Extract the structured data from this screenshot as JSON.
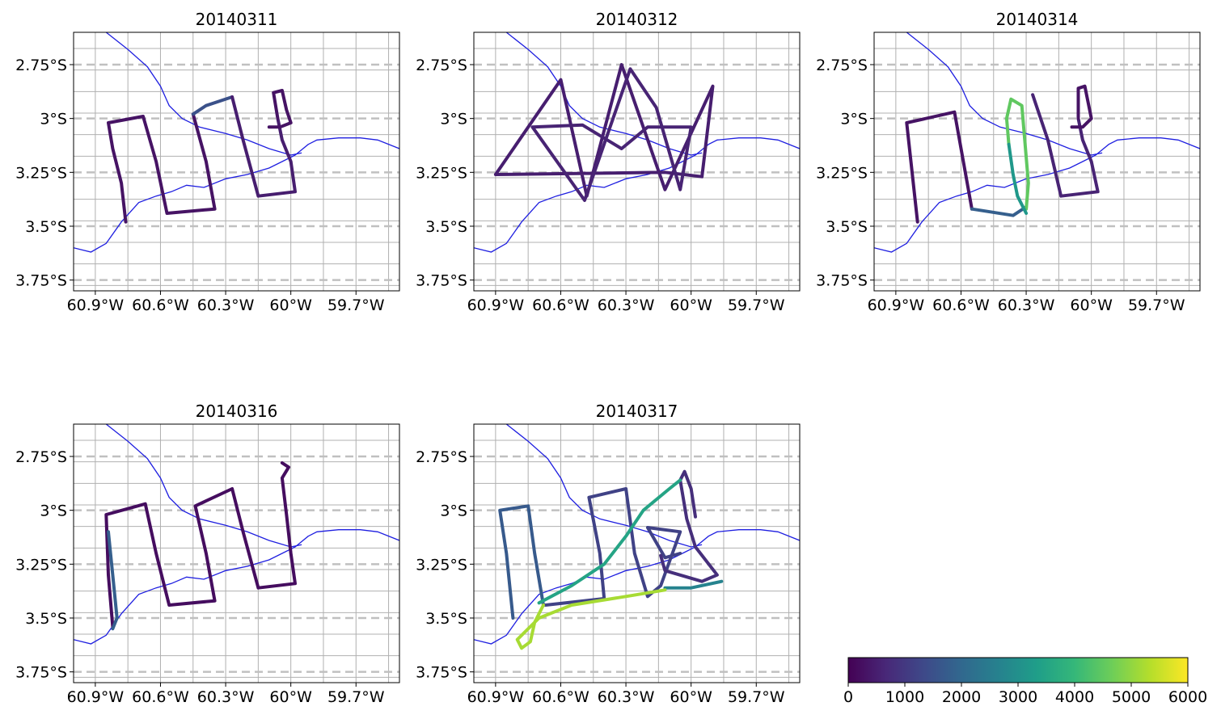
{
  "chart_data": {
    "type": "line",
    "x_ticks": [
      "60.9°W",
      "60.6°W",
      "60.3°W",
      "60°W",
      "59.7°W"
    ],
    "y_ticks": [
      "2.75°S",
      "3°S",
      "3.25°S",
      "3.5°S",
      "3.75°S"
    ],
    "xlim": [
      -61.0,
      -59.5
    ],
    "ylim": [
      -3.8,
      -2.6
    ],
    "grid": true,
    "colorbar": {
      "colormap": "viridis",
      "ticks": [
        "0",
        "1000",
        "2000",
        "3000",
        "4000",
        "5000",
        "6000"
      ],
      "range": [
        0,
        6000
      ]
    },
    "river": [
      [
        -61.0,
        -3.6
      ],
      [
        -60.92,
        -3.62
      ],
      [
        -60.85,
        -3.58
      ],
      [
        -60.78,
        -3.48
      ],
      [
        -60.7,
        -3.39
      ],
      [
        -60.62,
        -3.36
      ],
      [
        -60.55,
        -3.34
      ],
      [
        -60.48,
        -3.31
      ],
      [
        -60.4,
        -3.32
      ],
      [
        -60.3,
        -3.28
      ],
      [
        -60.2,
        -3.26
      ],
      [
        -60.1,
        -3.23
      ],
      [
        -60.04,
        -3.2
      ],
      [
        -59.98,
        -3.17
      ],
      [
        -59.92,
        -3.12
      ],
      [
        -59.88,
        -3.1
      ],
      [
        -59.78,
        -3.09
      ],
      [
        -59.68,
        -3.09
      ],
      [
        -59.6,
        -3.1
      ],
      [
        -59.5,
        -3.14
      ]
    ],
    "river2": [
      [
        -60.85,
        -2.6
      ],
      [
        -60.75,
        -2.68
      ],
      [
        -60.66,
        -2.76
      ],
      [
        -60.6,
        -2.85
      ],
      [
        -60.56,
        -2.94
      ],
      [
        -60.5,
        -3.0
      ],
      [
        -60.42,
        -3.04
      ],
      [
        -60.3,
        -3.07
      ],
      [
        -60.2,
        -3.1
      ],
      [
        -60.1,
        -3.14
      ],
      [
        -60.0,
        -3.17
      ],
      [
        -59.95,
        -3.16
      ]
    ],
    "panels": [
      {
        "title": "20140311",
        "segments": [
          {
            "alt": 300,
            "points": [
              [
                -60.76,
                -3.48
              ],
              [
                -60.78,
                -3.3
              ],
              [
                -60.82,
                -3.14
              ],
              [
                -60.84,
                -3.02
              ],
              [
                -60.68,
                -2.99
              ],
              [
                -60.62,
                -3.2
              ],
              [
                -60.57,
                -3.44
              ],
              [
                -60.35,
                -3.42
              ],
              [
                -60.39,
                -3.2
              ],
              [
                -60.45,
                -2.98
              ]
            ]
          },
          {
            "alt": 1500,
            "points": [
              [
                -60.45,
                -2.98
              ],
              [
                -60.39,
                -2.94
              ],
              [
                -60.27,
                -2.9
              ]
            ]
          },
          {
            "alt": 500,
            "points": [
              [
                -60.27,
                -2.9
              ],
              [
                -60.22,
                -3.1
              ],
              [
                -60.15,
                -3.36
              ],
              [
                -59.98,
                -3.34
              ],
              [
                -60.0,
                -3.2
              ],
              [
                -60.04,
                -3.1
              ],
              [
                -60.06,
                -3.0
              ]
            ]
          },
          {
            "alt": 300,
            "points": [
              [
                -60.06,
                -3.0
              ],
              [
                -60.08,
                -2.88
              ],
              [
                -60.04,
                -2.87
              ],
              [
                -60.02,
                -2.96
              ],
              [
                -60.0,
                -3.02
              ],
              [
                -60.05,
                -3.04
              ],
              [
                -60.1,
                -3.04
              ]
            ]
          }
        ]
      },
      {
        "title": "20140312",
        "segments": [
          {
            "alt": 500,
            "points": [
              [
                -60.9,
                -3.26
              ],
              [
                -60.6,
                -2.82
              ],
              [
                -60.48,
                -3.36
              ],
              [
                -60.32,
                -2.75
              ],
              [
                -60.12,
                -3.33
              ],
              [
                -59.9,
                -2.85
              ],
              [
                -59.95,
                -3.27
              ],
              [
                -60.12,
                -3.25
              ],
              [
                -60.9,
                -3.26
              ]
            ]
          },
          {
            "alt": 600,
            "points": [
              [
                -60.73,
                -3.04
              ],
              [
                -60.49,
                -3.38
              ],
              [
                -60.28,
                -2.77
              ],
              [
                -60.16,
                -2.95
              ],
              [
                -60.05,
                -3.33
              ],
              [
                -60.0,
                -3.04
              ],
              [
                -60.2,
                -3.04
              ],
              [
                -60.32,
                -3.14
              ],
              [
                -60.5,
                -3.03
              ],
              [
                -60.73,
                -3.04
              ]
            ]
          }
        ]
      },
      {
        "title": "20140314",
        "segments": [
          {
            "alt": 300,
            "points": [
              [
                -60.8,
                -3.48
              ],
              [
                -60.85,
                -3.02
              ],
              [
                -60.63,
                -2.97
              ],
              [
                -60.55,
                -3.42
              ]
            ]
          },
          {
            "alt": 1800,
            "points": [
              [
                -60.55,
                -3.42
              ],
              [
                -60.36,
                -3.45
              ],
              [
                -60.3,
                -3.41
              ]
            ]
          },
          {
            "alt": 4500,
            "points": [
              [
                -60.3,
                -3.42
              ],
              [
                -60.29,
                -3.3
              ],
              [
                -60.31,
                -3.06
              ],
              [
                -60.32,
                -2.94
              ],
              [
                -60.37,
                -2.91
              ],
              [
                -60.39,
                -3.0
              ],
              [
                -60.38,
                -3.12
              ]
            ]
          },
          {
            "alt": 3200,
            "points": [
              [
                -60.38,
                -3.12
              ],
              [
                -60.36,
                -3.26
              ],
              [
                -60.34,
                -3.36
              ],
              [
                -60.3,
                -3.44
              ]
            ]
          },
          {
            "alt": 600,
            "points": [
              [
                -60.27,
                -2.89
              ],
              [
                -60.2,
                -3.1
              ],
              [
                -60.14,
                -3.36
              ],
              [
                -59.97,
                -3.34
              ],
              [
                -60.0,
                -3.2
              ],
              [
                -60.04,
                -3.1
              ],
              [
                -60.06,
                -3.0
              ]
            ]
          },
          {
            "alt": 300,
            "points": [
              [
                -60.06,
                -3.0
              ],
              [
                -60.06,
                -2.86
              ],
              [
                -60.03,
                -2.85
              ],
              [
                -60.0,
                -3.0
              ],
              [
                -60.04,
                -3.04
              ],
              [
                -60.09,
                -3.04
              ]
            ]
          }
        ]
      },
      {
        "title": "20140316",
        "segments": [
          {
            "alt": 200,
            "points": [
              [
                -60.82,
                -3.54
              ],
              [
                -60.84,
                -3.3
              ],
              [
                -60.85,
                -3.02
              ],
              [
                -60.67,
                -2.97
              ],
              [
                -60.62,
                -3.2
              ],
              [
                -60.56,
                -3.44
              ],
              [
                -60.35,
                -3.42
              ],
              [
                -60.39,
                -3.2
              ],
              [
                -60.44,
                -2.98
              ],
              [
                -60.27,
                -2.9
              ],
              [
                -60.22,
                -3.1
              ],
              [
                -60.15,
                -3.36
              ],
              [
                -59.98,
                -3.34
              ],
              [
                -60.0,
                -3.2
              ],
              [
                -60.02,
                -3.02
              ],
              [
                -60.04,
                -2.85
              ],
              [
                -60.01,
                -2.8
              ],
              [
                -60.04,
                -2.78
              ]
            ]
          },
          {
            "alt": 1800,
            "points": [
              [
                -60.84,
                -3.1
              ],
              [
                -60.82,
                -3.3
              ],
              [
                -60.8,
                -3.5
              ],
              [
                -60.82,
                -3.55
              ]
            ]
          }
        ]
      },
      {
        "title": "20140317",
        "segments": [
          {
            "alt": 1700,
            "points": [
              [
                -60.68,
                -3.44
              ],
              [
                -60.72,
                -3.2
              ],
              [
                -60.75,
                -2.98
              ],
              [
                -60.88,
                -3.0
              ],
              [
                -60.85,
                -3.2
              ],
              [
                -60.82,
                -3.5
              ]
            ]
          },
          {
            "alt": 1200,
            "points": [
              [
                -60.67,
                -3.44
              ],
              [
                -60.4,
                -3.41
              ],
              [
                -60.42,
                -3.2
              ],
              [
                -60.47,
                -2.94
              ],
              [
                -60.3,
                -2.9
              ],
              [
                -60.26,
                -3.2
              ],
              [
                -60.2,
                -3.4
              ],
              [
                -60.14,
                -3.35
              ],
              [
                -60.05,
                -3.1
              ],
              [
                -60.2,
                -3.08
              ],
              [
                -60.12,
                -3.22
              ],
              [
                -60.05,
                -3.2
              ]
            ]
          },
          {
            "alt": 800,
            "points": [
              [
                -60.14,
                -3.21
              ],
              [
                -60.12,
                -3.28
              ],
              [
                -59.95,
                -3.33
              ],
              [
                -59.88,
                -3.3
              ],
              [
                -59.98,
                -3.17
              ],
              [
                -60.02,
                -3.04
              ],
              [
                -60.05,
                -2.86
              ],
              [
                -60.03,
                -2.82
              ],
              [
                -60.0,
                -2.9
              ],
              [
                -59.98,
                -3.03
              ]
            ]
          },
          {
            "alt": 2700,
            "points": [
              [
                -59.86,
                -3.33
              ],
              [
                -60.0,
                -3.36
              ],
              [
                -60.12,
                -3.36
              ]
            ]
          },
          {
            "alt": 3500,
            "points": [
              [
                -60.7,
                -3.43
              ],
              [
                -60.55,
                -3.35
              ],
              [
                -60.4,
                -3.25
              ],
              [
                -60.3,
                -3.12
              ],
              [
                -60.22,
                -3.0
              ],
              [
                -60.1,
                -2.9
              ],
              [
                -60.05,
                -2.86
              ]
            ]
          },
          {
            "alt": 5200,
            "points": [
              [
                -60.12,
                -3.37
              ],
              [
                -60.3,
                -3.4
              ],
              [
                -60.55,
                -3.44
              ],
              [
                -60.7,
                -3.5
              ],
              [
                -60.8,
                -3.6
              ],
              [
                -60.78,
                -3.64
              ],
              [
                -60.74,
                -3.61
              ],
              [
                -60.72,
                -3.52
              ],
              [
                -60.68,
                -3.44
              ]
            ]
          }
        ]
      }
    ]
  }
}
